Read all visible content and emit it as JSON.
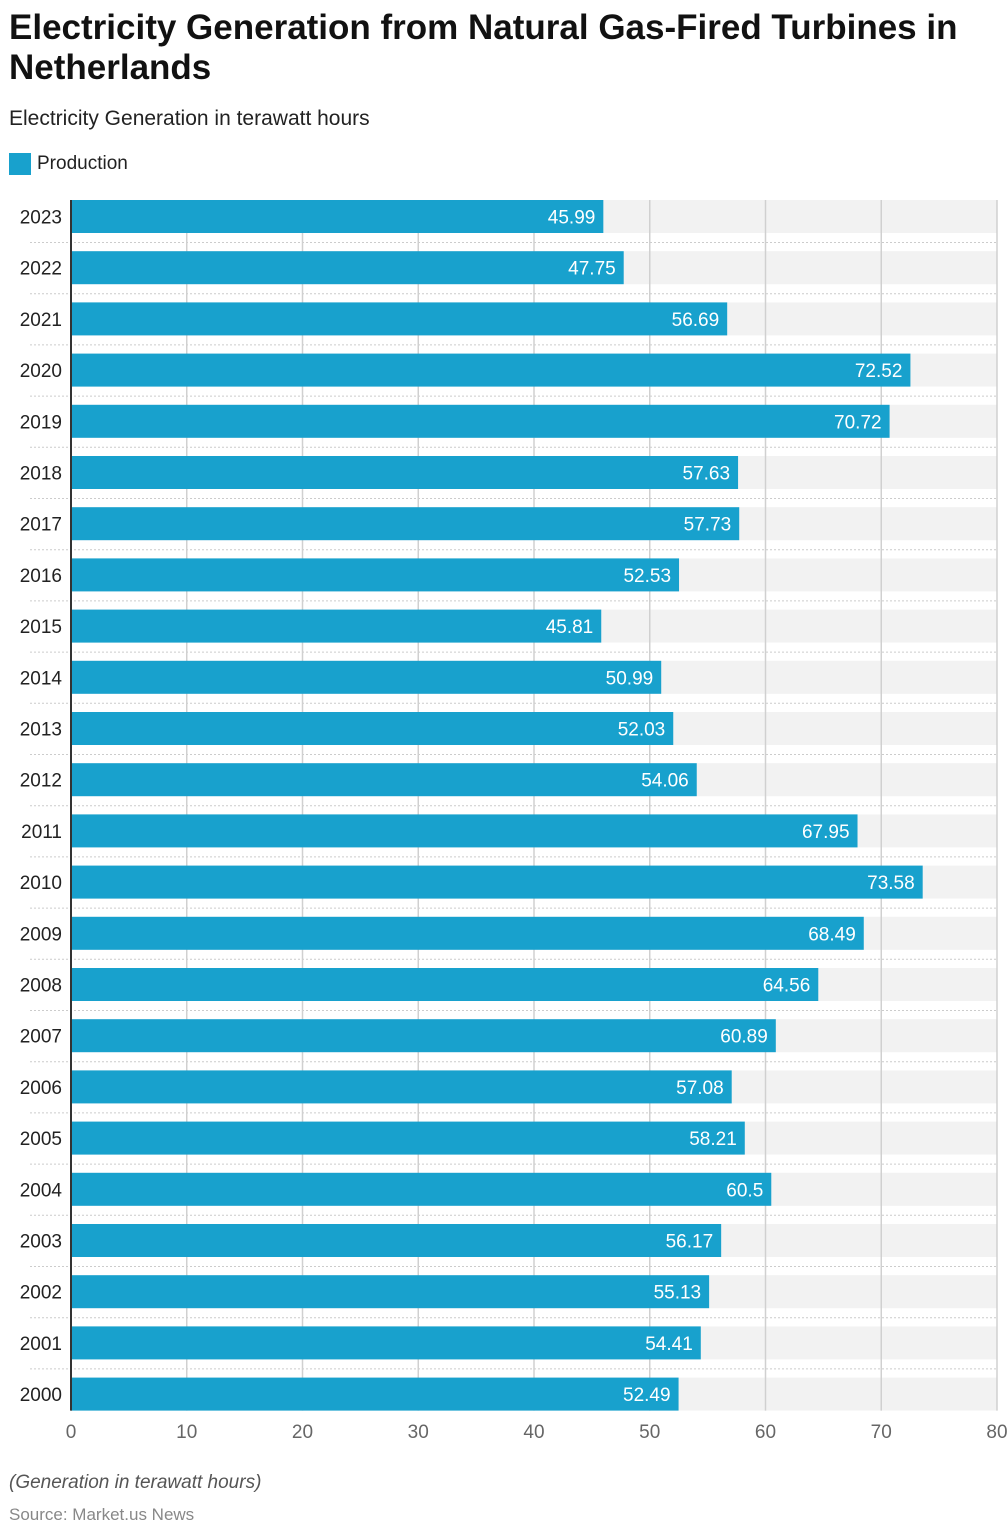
{
  "colors": {
    "bar": "#18a1cd",
    "track": "#f2f2f2",
    "grid": "#d0d0d0"
  },
  "chart_data": {
    "type": "bar",
    "orientation": "horizontal",
    "title": "Electricity Generation from Natural Gas-Fired Turbines in Netherlands",
    "subtitle": "Electricity Generation in terawatt hours",
    "legend": [
      {
        "name": "Production"
      }
    ],
    "legend_placement": "top-left",
    "categories": [
      "2023",
      "2022",
      "2021",
      "2020",
      "2019",
      "2018",
      "2017",
      "2016",
      "2015",
      "2014",
      "2013",
      "2012",
      "2011",
      "2010",
      "2009",
      "2008",
      "2007",
      "2006",
      "2005",
      "2004",
      "2003",
      "2002",
      "2001",
      "2000"
    ],
    "series": [
      {
        "name": "Production",
        "values": [
          45.99,
          47.75,
          56.69,
          72.52,
          70.72,
          57.63,
          57.73,
          52.53,
          45.81,
          50.99,
          52.03,
          54.06,
          67.95,
          73.58,
          68.49,
          64.56,
          60.89,
          57.08,
          58.21,
          60.5,
          56.17,
          55.13,
          54.41,
          52.49
        ]
      }
    ],
    "xlim": [
      0,
      80
    ],
    "xticks": [
      "0",
      "10",
      "20",
      "30",
      "40",
      "50",
      "60",
      "70",
      "80"
    ],
    "grid": true,
    "note": "(Generation in terawatt hours)",
    "source": "Source: Market.us News"
  }
}
